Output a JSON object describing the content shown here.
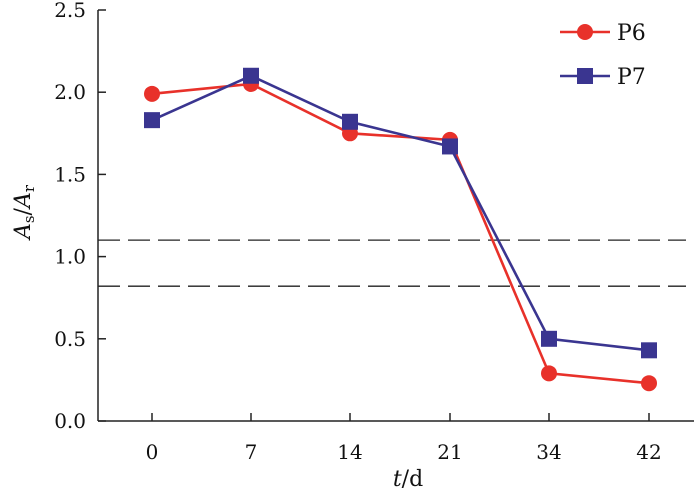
{
  "chart_data": {
    "type": "line",
    "categories": [
      "0",
      "7",
      "14",
      "21",
      "34",
      "42"
    ],
    "series": [
      {
        "name": "P6",
        "values": [
          1.99,
          2.05,
          1.75,
          1.71,
          0.29,
          0.23
        ],
        "color": "#e8312a",
        "marker": "circle"
      },
      {
        "name": "P7",
        "values": [
          1.83,
          2.1,
          1.82,
          1.67,
          0.5,
          0.43
        ],
        "color": "#3a3590",
        "marker": "square"
      }
    ],
    "reference_lines": [
      1.1,
      0.82
    ],
    "xlabel": {
      "var": "t",
      "rest": "/d"
    },
    "ylabel": {
      "a": "A",
      "a_sub": "s",
      "sep": "/",
      "b": "A",
      "b_sub": "r"
    },
    "ylim": [
      0,
      2.5
    ],
    "yticks": [
      "0.0",
      "0.5",
      "1.0",
      "1.5",
      "2.0",
      "2.5"
    ],
    "grid": false,
    "legend_position": "top-right"
  }
}
